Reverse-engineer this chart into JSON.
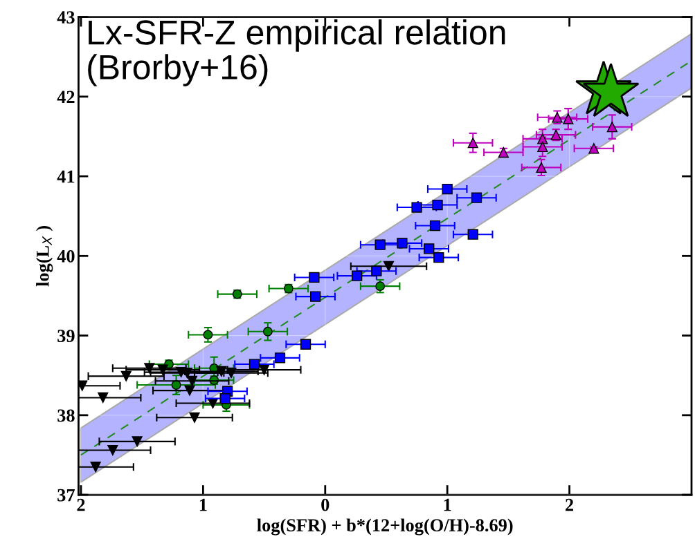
{
  "chart_data": {
    "type": "scatter",
    "title": "Lx-SFR-Z empirical relation\n(Brorby+16)",
    "xlabel": "log(SFR) + b*(12+log(O/H)-8.69)",
    "ylabel": "log(L$_{X}$ )",
    "xlim": [
      -2.02,
      3.0
    ],
    "ylim": [
      37,
      43
    ],
    "xticks": [
      {
        "value": -2,
        "label": "2"
      },
      {
        "value": -1,
        "label": "1"
      },
      0,
      1,
      2
    ],
    "yticks": [
      37,
      38,
      39,
      40,
      41,
      42,
      43
    ],
    "grid": true,
    "series": [
      {
        "type": "line",
        "color": "#228b22",
        "line_style": "dashed",
        "marker": "none",
        "x": [
          -2.0,
          3.0
        ],
        "values": [
          37.5,
          42.45
        ],
        "lower": [
          37.16,
          42.11
        ],
        "upper": [
          37.84,
          42.79
        ]
      },
      {
        "color": "#008000",
        "marker": "circle",
        "x": [
          -0.72,
          -0.3,
          -0.96,
          -0.47,
          -1.28,
          -0.91,
          -0.91,
          -1.22,
          -0.81,
          0.45
        ],
        "values": [
          39.52,
          39.59,
          39.01,
          39.05,
          38.64,
          38.59,
          38.44,
          38.38,
          38.13,
          39.62
        ],
        "xerrors": [
          0.16,
          0.16,
          0.16,
          0.16,
          0.16,
          0.16,
          0.16,
          0.32,
          0.19,
          0.16
        ],
        "errors": [
          0.05,
          0.05,
          0.09,
          0.11,
          0.05,
          0.14,
          0.05,
          0.12,
          0.08,
          0.08
        ]
      },
      {
        "color": "#000000",
        "marker": "triangle_down",
        "x": [
          -1.44,
          -1.33,
          -1.18,
          -1.13,
          -0.85,
          -0.77,
          -0.5,
          -1.63,
          -1.99,
          -1.09,
          -1.11,
          -1.82,
          -0.92,
          -1.07,
          -1.54,
          -1.74,
          -1.88,
          0.52
        ],
        "values": [
          38.59,
          38.57,
          38.54,
          38.53,
          38.55,
          38.53,
          38.57,
          38.49,
          38.37,
          38.43,
          38.31,
          38.22,
          38.15,
          37.97,
          37.67,
          37.56,
          37.35,
          39.87
        ],
        "xerrors": [
          0.3,
          0.3,
          0.3,
          0.3,
          0.3,
          0.3,
          0.3,
          0.31,
          0.31,
          0.3,
          0.3,
          0.31,
          0.3,
          0.31,
          0.31,
          0.31,
          0.31,
          0.31
        ]
      },
      {
        "color": "#0000ff",
        "marker": "square",
        "x": [
          -0.09,
          -0.08,
          -0.16,
          -0.37,
          -0.58,
          -0.8,
          -0.82,
          1.0,
          1.24,
          0.75,
          0.92,
          0.9,
          1.21,
          0.45,
          0.63,
          0.85,
          0.93,
          0.42,
          0.26
        ],
        "values": [
          39.73,
          39.49,
          38.89,
          38.72,
          38.64,
          38.3,
          38.21,
          40.84,
          40.73,
          40.61,
          40.64,
          40.38,
          40.27,
          40.14,
          40.16,
          40.09,
          39.98,
          39.81,
          39.75
        ],
        "xerrors": [
          0.16,
          0.16,
          0.16,
          0.16,
          0.16,
          0.16,
          0.16,
          0.16,
          0.16,
          0.16,
          0.16,
          0.16,
          0.16,
          0.16,
          0.16,
          0.16,
          0.16,
          0.16,
          0.16
        ]
      },
      {
        "color": "#bf00bf",
        "marker": "triangle",
        "x": [
          1.21,
          1.46,
          1.9,
          1.99,
          2.35,
          1.89,
          1.78,
          1.78,
          2.2,
          1.77
        ],
        "values": [
          41.42,
          41.3,
          41.74,
          41.72,
          41.62,
          41.52,
          41.47,
          41.37,
          41.35,
          41.11
        ],
        "xerrors": [
          0.16,
          0.16,
          0.16,
          0.16,
          0.16,
          0.16,
          0.16,
          0.16,
          0.16,
          0.16
        ],
        "errors": [
          0.12,
          0.05,
          0.08,
          0.13,
          0.15,
          0.07,
          0.12,
          0.12,
          0.02,
          0.1
        ]
      },
      {
        "color": "#22aa00",
        "marker": "star",
        "x": [
          2.28,
          2.34
        ],
        "values": [
          42.08,
          42.05
        ]
      }
    ]
  }
}
